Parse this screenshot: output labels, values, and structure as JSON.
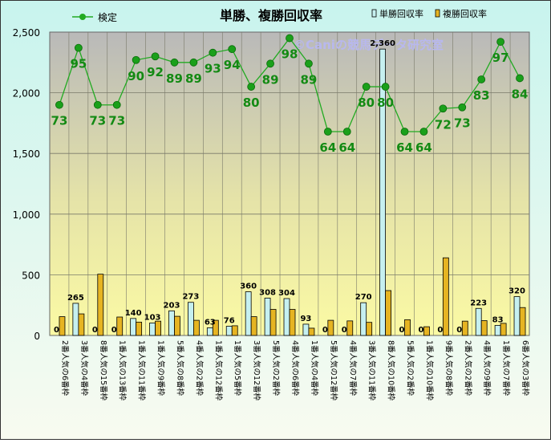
{
  "chart_data": {
    "type": "bar",
    "title": "単勝、複勝回収率",
    "watermark": "©Caniの競馬データ研究室",
    "xlabel": "",
    "ylabel": "",
    "ylim": [
      0,
      2500
    ],
    "yticks": [
      0,
      500,
      1000,
      1500,
      2000,
      2500
    ],
    "ytick_labels": [
      "0",
      "500",
      "1,000",
      "1,500",
      "2,000",
      "2,500"
    ],
    "grid": true,
    "legend_position": "top",
    "categories": [
      "2番人気の6番枠",
      "3番人気の4番枠",
      "8番人気の15番枠",
      "1番人気の13番枠",
      "1番人気の11番枠",
      "1番人気の9番枠",
      "5番人気の8番枠",
      "4番人気の2番枠",
      "1番人気の12番枠",
      "1番人気の5番枠",
      "3番人気の12番枠",
      "5番人気の2番枠",
      "4番人気の6番枠",
      "1番人気の4番枠",
      "5番人気の12番枠",
      "4番人気の7番枠",
      "3番人気の11番枠",
      "8番人気の10番枠",
      "5番人気の2番枠",
      "1番人気の10番枠",
      "9番人気の8番枠",
      "2番人気の2番枠",
      "4番人気の9番枠",
      "1番人気の7番枠",
      "6番人気の3番枠"
    ],
    "series": [
      {
        "name": "単勝回収率",
        "kind": "bar",
        "color": "#c6f0f0",
        "values": [
          0,
          265,
          0,
          0,
          140,
          103,
          203,
          273,
          63,
          76,
          360,
          308,
          304,
          93,
          0,
          0,
          270,
          2360,
          0,
          0,
          0,
          0,
          223,
          83,
          320
        ],
        "labels": [
          "0",
          "265",
          "0",
          "0",
          "140",
          "103",
          "203",
          "273",
          "63",
          "76",
          "360",
          "308",
          "304",
          "93",
          "0",
          "0",
          "270",
          "2,360",
          "0",
          "0",
          "0",
          "0",
          "223",
          "83",
          "320"
        ]
      },
      {
        "name": "複勝回収率",
        "kind": "bar",
        "color": "#e6b422",
        "values": [
          155,
          178,
          505,
          152,
          110,
          118,
          158,
          125,
          125,
          80,
          155,
          215,
          215,
          60,
          125,
          120,
          108,
          370,
          130,
          72,
          640,
          118,
          122,
          100,
          230
        ]
      },
      {
        "name": "検定",
        "kind": "line",
        "color": "#22aa22",
        "values": [
          73,
          95,
          73,
          73,
          90,
          92,
          89,
          89,
          93,
          94,
          80,
          89,
          98,
          89,
          64,
          64,
          80,
          80,
          64,
          64,
          72,
          73,
          83,
          97,
          84
        ],
        "plotted_as": [
          1900,
          2370,
          1900,
          1900,
          2270,
          2300,
          2250,
          2250,
          2330,
          2360,
          2050,
          2240,
          2450,
          2240,
          1680,
          1680,
          2050,
          2050,
          1680,
          1680,
          1870,
          1880,
          2110,
          2420,
          2120
        ]
      }
    ]
  }
}
